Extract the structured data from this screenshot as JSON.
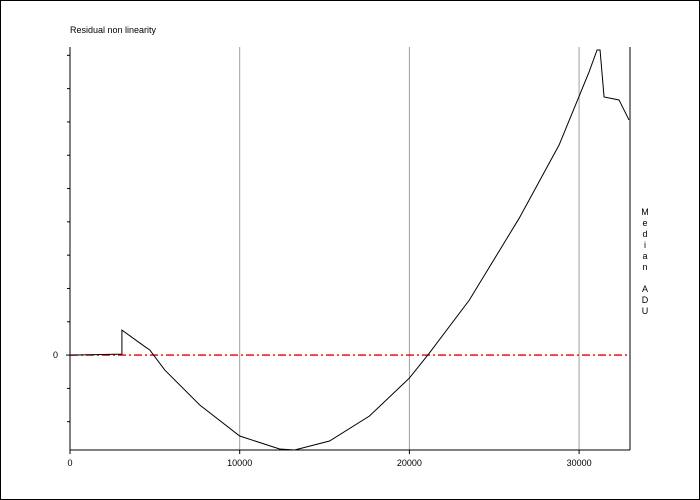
{
  "chart_data": {
    "type": "line",
    "title": "Residual non linearity",
    "y_label": "Median ADU",
    "x": [
      0,
      3059,
      3059,
      4118,
      4706,
      5588,
      7647,
      10000,
      12353,
      13235,
      15294,
      17647,
      20000,
      21176,
      23529,
      26471,
      28824,
      30588,
      31059,
      31235,
      31471,
      32353,
      32941
    ],
    "series": [
      {
        "color": "#000000",
        "values": [
          0,
          0.03,
          0.75,
          0.36,
          0.15,
          -0.45,
          -1.5,
          -2.43,
          -2.82,
          -2.85,
          -2.58,
          -1.83,
          -0.69,
          0.06,
          1.65,
          4.11,
          6.31,
          8.5,
          9.16,
          9.16,
          7.75,
          7.66,
          7.06
        ]
      }
    ],
    "reference_line": {
      "value": 0,
      "color": "#e00000"
    },
    "xlim": [
      0,
      33000
    ],
    "xticks": [
      0,
      10000,
      20000,
      30000
    ],
    "ylim": [
      -2.85,
      9.25
    ],
    "yticks": [
      0
    ],
    "yminor_ticks": [
      -2,
      -1,
      1,
      2,
      3,
      4,
      5,
      6,
      7,
      8,
      9
    ],
    "grid": true
  }
}
